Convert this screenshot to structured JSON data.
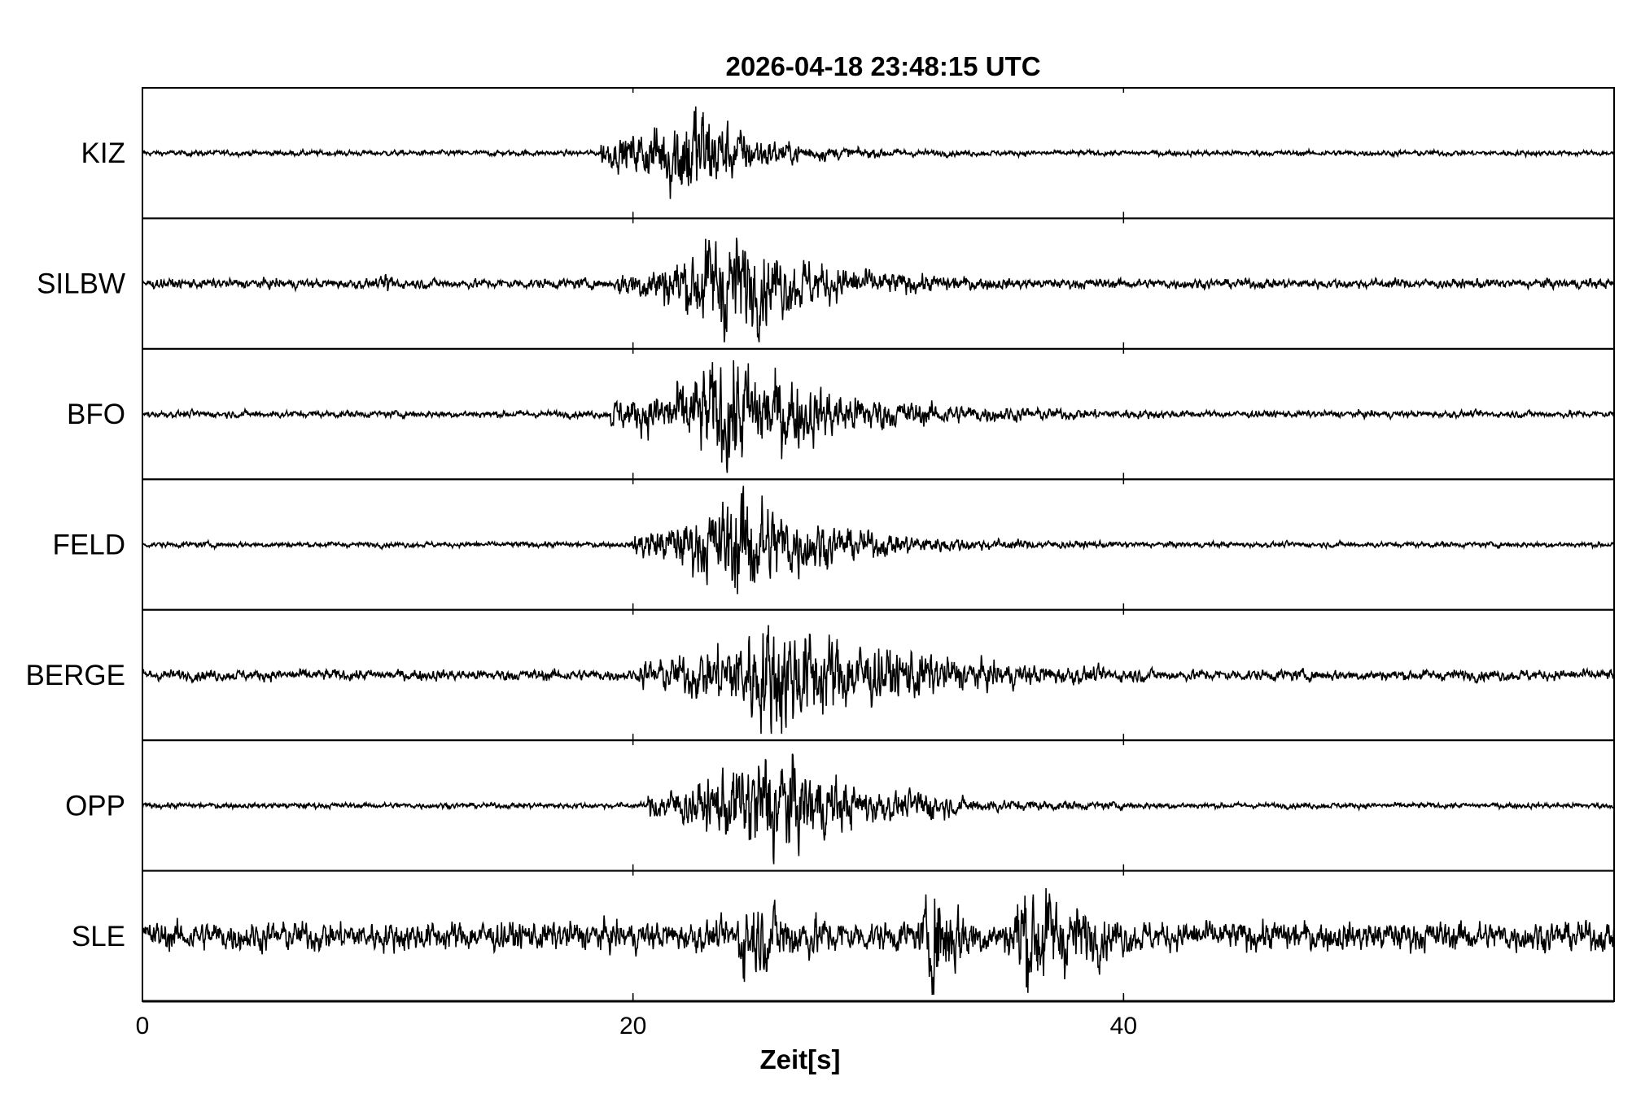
{
  "chart_data": {
    "type": "line",
    "title": "2026-04-18  23:48:15 UTC",
    "xlabel": "Zeit[s]",
    "ylabel": "",
    "xlim": [
      0,
      60
    ],
    "xticks": [
      0,
      20,
      40
    ],
    "xtick_labels": [
      "0",
      "20",
      "40"
    ],
    "grid": false,
    "line_color": "#000000",
    "series": [
      {
        "name": "KIZ",
        "noise": 0.04,
        "events": [
          {
            "onset": 18.7,
            "peak": 22.3,
            "amp": 0.85,
            "decay": 4
          }
        ]
      },
      {
        "name": "SILBW",
        "noise": 0.07,
        "events": [
          {
            "onset": 9.6,
            "peak": 10.0,
            "amp": 0.2,
            "decay": 1
          },
          {
            "onset": 19.4,
            "peak": 23.6,
            "amp": 0.85,
            "decay": 7
          }
        ]
      },
      {
        "name": "BFO",
        "noise": 0.05,
        "events": [
          {
            "onset": 19.1,
            "peak": 23.8,
            "amp": 0.9,
            "decay": 8
          }
        ]
      },
      {
        "name": "FELD",
        "noise": 0.04,
        "events": [
          {
            "onset": 20.0,
            "peak": 24.4,
            "amp": 0.85,
            "decay": 6
          }
        ]
      },
      {
        "name": "BERGE",
        "noise": 0.08,
        "events": [
          {
            "onset": 20.3,
            "peak": 25.5,
            "amp": 0.9,
            "decay": 10
          },
          {
            "onset": 31.0,
            "peak": 31.2,
            "amp": 0.4,
            "decay": 6
          }
        ]
      },
      {
        "name": "OPP",
        "noise": 0.04,
        "events": [
          {
            "onset": 20.6,
            "peak": 25.4,
            "amp": 0.9,
            "decay": 6
          },
          {
            "onset": 31.5,
            "peak": 31.6,
            "amp": 0.3,
            "decay": 3
          }
        ]
      },
      {
        "name": "SLE",
        "noise": 0.22,
        "events": [
          {
            "onset": 24.1,
            "peak": 24.3,
            "amp": 0.6,
            "decay": 8
          },
          {
            "onset": 31.5,
            "peak": 32.2,
            "amp": 0.9,
            "decay": 3
          },
          {
            "onset": 35.0,
            "peak": 35.8,
            "amp": 0.9,
            "decay": 6
          }
        ]
      }
    ]
  }
}
